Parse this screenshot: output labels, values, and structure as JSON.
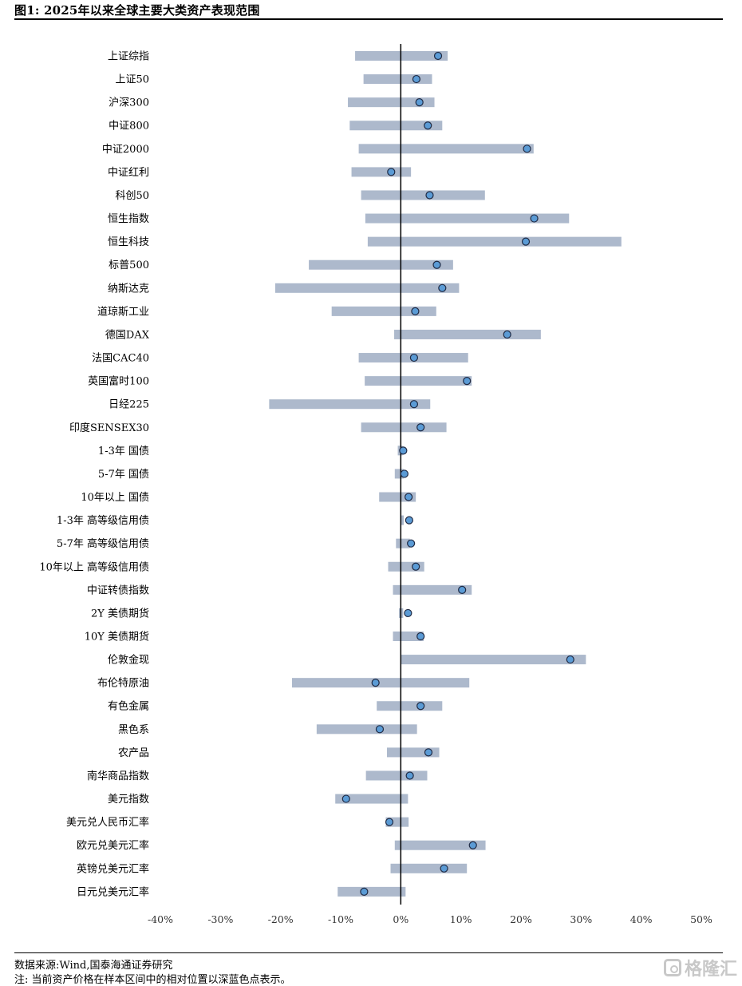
{
  "title": "图1:  2025年以来全球主要大类资产表现范围",
  "source": "数据来源:Wind,国泰海通证券研究",
  "note": "注:  当前资产价格在样本区间中的相对位置以深蓝色点表示。",
  "watermark": "格隆汇",
  "colors": {
    "bar": "#adb9cc",
    "dot": "#5b9bd5",
    "dot_stroke": "#1f2a44",
    "axis": "#000000"
  },
  "chart_data": {
    "type": "range-bar",
    "xlim": [
      -40,
      50
    ],
    "xticks": [
      -40,
      -30,
      -20,
      -10,
      0,
      10,
      20,
      30,
      40,
      50
    ],
    "xtick_labels": [
      "-40%",
      "-30%",
      "-20%",
      "-10%",
      "0%",
      "10%",
      "20%",
      "30%",
      "40%",
      "50%"
    ],
    "categories": [
      "上证综指",
      "上证50",
      "沪深300",
      "中证800",
      "中证2000",
      "中证红利",
      "科创50",
      "恒生指数",
      "恒生科技",
      "标普500",
      "纳斯达克",
      "道琼斯工业",
      "德国DAX",
      "法国CAC40",
      "英国富时100",
      "日经225",
      "印度SENSEX30",
      "1-3年 国债",
      "5-7年 国债",
      "10年以上 国债",
      "1-3年 高等级信用债",
      "5-7年 高等级信用债",
      "10年以上 高等级信用债",
      "中证转债指数",
      "2Y 美债期货",
      "10Y 美债期货",
      "伦敦金现",
      "布伦特原油",
      "有色金属",
      "黑色系",
      "农产品",
      "南华商品指数",
      "美元指数",
      "美元兑人民币汇率",
      "欧元兑美元汇率",
      "英镑兑美元汇率",
      "日元兑美元汇率"
    ],
    "min": [
      -7.6,
      -6.2,
      -8.8,
      -8.5,
      -7.0,
      -8.2,
      -6.6,
      -5.9,
      -5.5,
      -15.3,
      -20.9,
      -11.5,
      -1.1,
      -7.0,
      -6.0,
      -21.9,
      -6.6,
      -0.5,
      -1.0,
      -3.6,
      -0.1,
      -0.8,
      -2.1,
      -1.3,
      -0.3,
      -1.3,
      0.0,
      -18.1,
      -4.0,
      -14.0,
      -2.3,
      -5.8,
      -10.9,
      -2.5,
      -1.0,
      -1.7,
      -10.5
    ],
    "max": [
      7.8,
      5.2,
      5.6,
      6.9,
      22.1,
      1.7,
      14.0,
      28.0,
      36.7,
      8.7,
      9.7,
      5.9,
      23.3,
      11.2,
      11.8,
      4.9,
      7.6,
      0.3,
      0.5,
      2.5,
      0.5,
      1.5,
      3.9,
      11.8,
      0.4,
      3.8,
      30.8,
      11.4,
      6.9,
      2.7,
      6.4,
      4.4,
      1.2,
      1.3,
      14.1,
      11.0,
      0.8
    ],
    "current": [
      6.2,
      2.6,
      3.1,
      4.5,
      21.0,
      -1.6,
      4.8,
      22.2,
      20.8,
      6.0,
      6.9,
      2.4,
      17.7,
      2.2,
      11.0,
      2.2,
      3.3,
      0.4,
      0.6,
      1.3,
      1.4,
      1.7,
      2.5,
      10.2,
      1.2,
      3.3,
      28.2,
      -4.2,
      3.3,
      -3.5,
      4.6,
      1.5,
      -9.1,
      -1.9,
      12.0,
      7.2,
      -6.1
    ]
  }
}
